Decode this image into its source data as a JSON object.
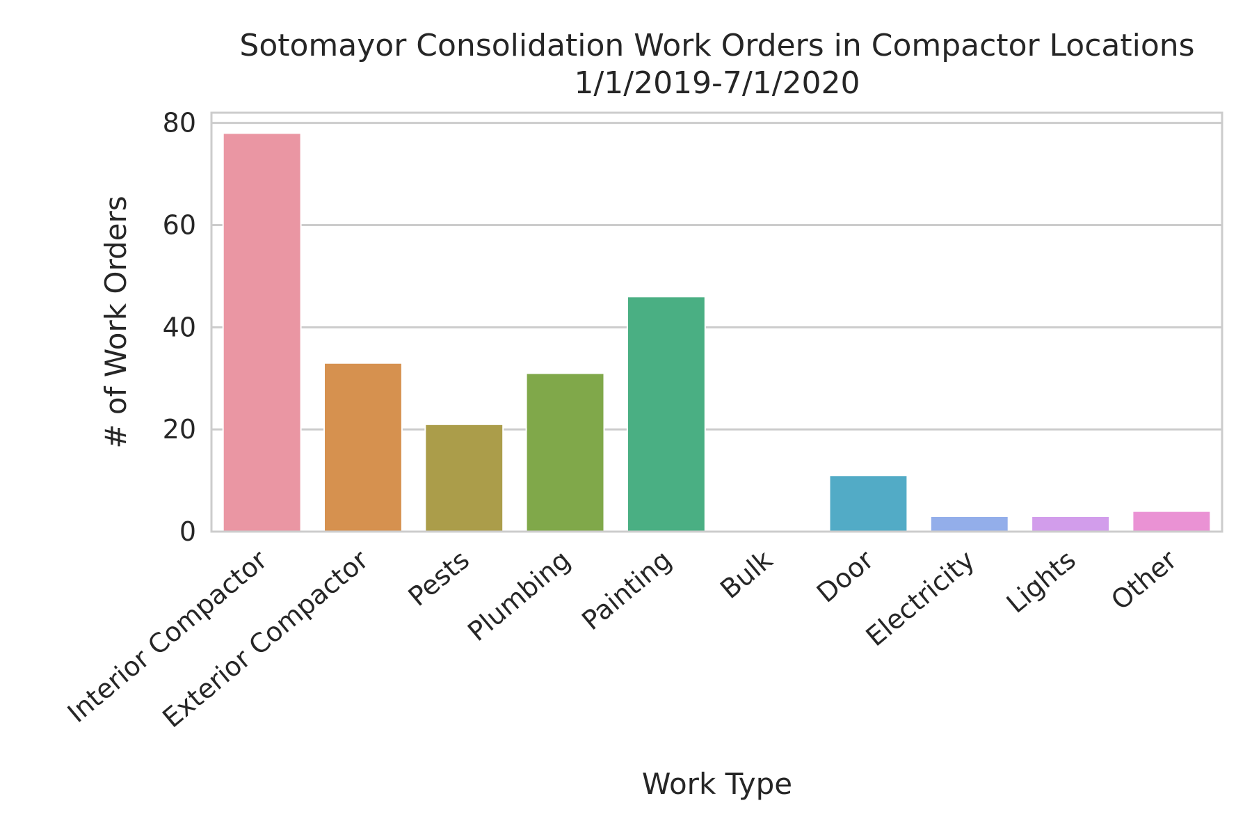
{
  "chart_data": {
    "type": "bar",
    "title": "Sotomayor Consolidation Work Orders in Compactor Locations",
    "subtitle": "1/1/2019-7/1/2020",
    "xlabel": "Work Type",
    "ylabel": "# of Work Orders",
    "categories": [
      "Interior Compactor",
      "Exterior Compactor",
      "Pests",
      "Plumbing",
      "Painting",
      "Bulk",
      "Door",
      "Electricity",
      "Lights",
      "Other"
    ],
    "values": [
      78,
      33,
      21,
      31,
      46,
      0,
      11,
      3,
      3,
      4
    ],
    "colors": [
      "#ea96a3",
      "#d6914f",
      "#ab9d4a",
      "#80a84a",
      "#4aaf83",
      "#4dac97",
      "#52abc6",
      "#93aeea",
      "#d29deb",
      "#ea92d4"
    ],
    "ylim": [
      0,
      82
    ],
    "yticks": [
      0,
      20,
      40,
      60,
      80
    ],
    "grid": true,
    "legend": "none"
  }
}
